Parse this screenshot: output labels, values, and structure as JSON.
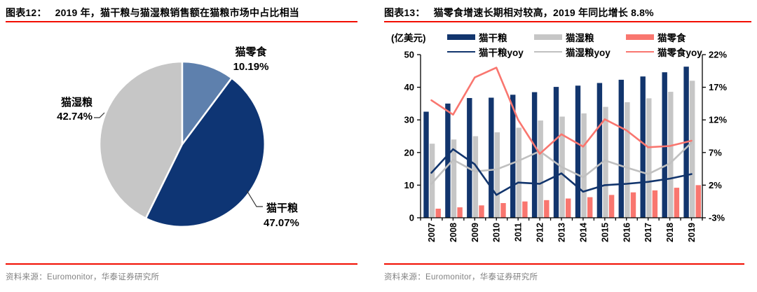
{
  "panels": {
    "left": {
      "title_label": "图表12：",
      "title_text": "2019 年，猫干粮与猫湿粮销售额在猫粮市场中占比相当",
      "source": "资料来源：Euromonitor，华泰证券研究所"
    },
    "right": {
      "title_label": "图表13：",
      "title_text": "猫零食增速长期相对较高，2019 年同比增长 8.8%",
      "unit_label": "(亿美元)",
      "source": "资料来源：Euromonitor，华泰证券研究所"
    }
  },
  "colors": {
    "rule_red": "#f20d00",
    "axis_black": "#000000",
    "source_gray": "#808080"
  },
  "chart_data": [
    {
      "type": "pie",
      "title": "2019 年，猫干粮与猫湿粮销售额在猫粮市场中占比相当",
      "labels": [
        "猫零食",
        "猫干粮",
        "猫湿粮"
      ],
      "values": [
        10.19,
        47.07,
        42.74
      ],
      "value_labels": [
        "10.19%",
        "47.07%",
        "42.74%"
      ],
      "colors": [
        "#5e80ad",
        "#0e3574",
        "#c6c6c6"
      ],
      "start_angle_deg": 0,
      "direction": "clockwise",
      "legend_position": "none"
    },
    {
      "type": "bar+line",
      "title": "猫零食增速长期相对较高，2019 年同比增长 8.8%",
      "unit": "亿美元",
      "categories": [
        "2007",
        "2008",
        "2009",
        "2010",
        "2011",
        "2012",
        "2013",
        "2014",
        "2015",
        "2016",
        "2017",
        "2018",
        "2019"
      ],
      "bar_series": [
        {
          "name": "猫干粮",
          "axis": "left",
          "color": "#12356d",
          "values": [
            32.5,
            35.0,
            36.7,
            36.8,
            37.7,
            38.5,
            40.1,
            40.5,
            41.3,
            42.3,
            43.3,
            44.6,
            46.3
          ]
        },
        {
          "name": "猫湿粮",
          "axis": "left",
          "color": "#c6c6c6",
          "values": [
            22.7,
            24.0,
            25.0,
            26.2,
            27.6,
            29.8,
            31.0,
            32.0,
            34.0,
            35.4,
            36.6,
            38.6,
            42.0
          ]
        },
        {
          "name": "猫零食",
          "axis": "left",
          "color": "#f9766f",
          "values": [
            2.8,
            3.2,
            3.8,
            4.5,
            5.0,
            5.4,
            5.9,
            6.3,
            7.0,
            7.8,
            8.4,
            9.2,
            10.0
          ]
        }
      ],
      "line_series": [
        {
          "name": "猫干粮yoy",
          "axis": "right",
          "color": "#12356d",
          "values": [
            3.9,
            7.5,
            5.2,
            0.5,
            2.4,
            2.2,
            3.8,
            1.0,
            2.0,
            2.2,
            2.5,
            3.0,
            3.7
          ]
        },
        {
          "name": "猫湿粮yoy",
          "axis": "right",
          "color": "#c0c0c0",
          "values": [
            2.2,
            5.9,
            4.1,
            4.4,
            5.7,
            7.2,
            4.8,
            3.2,
            5.8,
            4.7,
            3.7,
            5.3,
            8.5
          ]
        },
        {
          "name": "猫零食yoy",
          "axis": "right",
          "color": "#f9766f",
          "values": [
            15.0,
            12.8,
            18.5,
            20.0,
            12.0,
            6.8,
            9.8,
            7.9,
            12.1,
            10.4,
            7.8,
            8.0,
            8.8
          ]
        }
      ],
      "left_axis": {
        "min": 0,
        "max": 50,
        "ticks": [
          "0",
          "10",
          "20",
          "30",
          "40",
          "50"
        ],
        "tick_values": [
          0,
          10,
          20,
          30,
          40,
          50
        ]
      },
      "right_axis": {
        "min": -3,
        "max": 22,
        "ticks": [
          "-3%",
          "2%",
          "7%",
          "12%",
          "17%",
          "22%"
        ],
        "tick_values": [
          -3,
          2,
          7,
          12,
          17,
          22
        ]
      },
      "grid": "off",
      "legend_position": "top"
    }
  ]
}
